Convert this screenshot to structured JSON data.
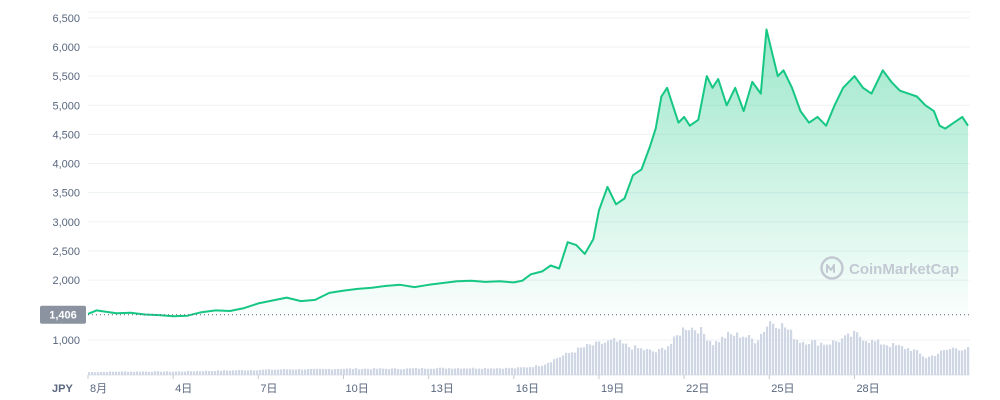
{
  "chart_data": {
    "type": "line",
    "currency": "JPY",
    "watermark": "CoinMarketCap",
    "ylim": [
      1350,
      6600
    ],
    "y_ticks": [
      {
        "value": 1000,
        "label": "1,000"
      },
      {
        "value": 2000,
        "label": "2,000"
      },
      {
        "value": 2500,
        "label": "2,500"
      },
      {
        "value": 3000,
        "label": "3,000"
      },
      {
        "value": 3500,
        "label": "3,500"
      },
      {
        "value": 4000,
        "label": "4,000"
      },
      {
        "value": 4500,
        "label": "4,500"
      },
      {
        "value": 5000,
        "label": "5,000"
      },
      {
        "value": 5500,
        "label": "5,500"
      },
      {
        "value": 6000,
        "label": "6,000"
      },
      {
        "value": 6500,
        "label": "6,500"
      }
    ],
    "reference_line": {
      "value": 1406,
      "label": "1,406"
    },
    "x_ticks": [
      {
        "day": 1,
        "label": "8月"
      },
      {
        "day": 4,
        "label": "4日"
      },
      {
        "day": 7,
        "label": "7日"
      },
      {
        "day": 10,
        "label": "10日"
      },
      {
        "day": 13,
        "label": "13日"
      },
      {
        "day": 16,
        "label": "16日"
      },
      {
        "day": 19,
        "label": "19日"
      },
      {
        "day": 22,
        "label": "22日"
      },
      {
        "day": 25,
        "label": "25日"
      },
      {
        "day": 28,
        "label": "28日"
      }
    ],
    "xlim": [
      1,
      32
    ],
    "price": {
      "x": [
        1,
        1.3,
        1.6,
        2,
        2.5,
        3,
        3.5,
        4,
        4.5,
        5,
        5.5,
        6,
        6.5,
        7,
        7.5,
        8,
        8.5,
        9,
        9.5,
        10,
        10.5,
        11,
        11.5,
        12,
        12.5,
        13,
        13.5,
        14,
        14.5,
        15,
        15.5,
        16,
        16.3,
        16.6,
        17,
        17.3,
        17.6,
        17.9,
        18.2,
        18.5,
        18.8,
        19,
        19.3,
        19.6,
        19.9,
        20.2,
        20.5,
        20.8,
        21,
        21.2,
        21.4,
        21.6,
        21.8,
        22,
        22.2,
        22.5,
        22.8,
        23,
        23.2,
        23.5,
        23.8,
        24.1,
        24.4,
        24.7,
        24.9,
        25.1,
        25.3,
        25.5,
        25.8,
        26.1,
        26.4,
        26.7,
        27,
        27.3,
        27.6,
        28,
        28.3,
        28.6,
        29,
        29.3,
        29.6,
        29.9,
        30.2,
        30.5,
        30.8,
        31,
        31.2,
        31.5,
        31.8,
        32
      ],
      "y": [
        1420,
        1480,
        1460,
        1430,
        1440,
        1410,
        1400,
        1380,
        1390,
        1450,
        1480,
        1470,
        1520,
        1600,
        1650,
        1700,
        1640,
        1660,
        1780,
        1820,
        1850,
        1870,
        1900,
        1920,
        1880,
        1920,
        1950,
        1980,
        1990,
        1970,
        1980,
        1960,
        1990,
        2100,
        2150,
        2250,
        2200,
        2650,
        2600,
        2450,
        2700,
        3200,
        3600,
        3300,
        3400,
        3800,
        3900,
        4300,
        4600,
        5150,
        5300,
        5000,
        4700,
        4800,
        4650,
        4750,
        5500,
        5300,
        5450,
        5000,
        5300,
        4900,
        5400,
        5200,
        6300,
        5900,
        5500,
        5600,
        5300,
        4900,
        4700,
        4800,
        4650,
        5000,
        5300,
        5500,
        5300,
        5200,
        5600,
        5400,
        5250,
        5200,
        5150,
        5000,
        4900,
        4650,
        4600,
        4700,
        4800,
        4650
      ]
    },
    "volume": {
      "x": [
        1,
        2,
        3,
        4,
        5,
        6,
        7,
        8,
        9,
        10,
        11,
        12,
        13,
        14,
        15,
        16,
        16.5,
        17,
        17.5,
        18,
        18.5,
        19,
        19.5,
        20,
        20.5,
        21,
        21.5,
        22,
        22.5,
        23,
        23.5,
        24,
        24.5,
        25,
        25.5,
        26,
        26.5,
        27,
        27.5,
        28,
        28.5,
        29,
        29.5,
        30,
        30.5,
        31,
        31.5,
        32
      ],
      "rel": [
        0.05,
        0.06,
        0.06,
        0.06,
        0.07,
        0.08,
        0.09,
        0.1,
        0.1,
        0.11,
        0.11,
        0.11,
        0.12,
        0.12,
        0.12,
        0.12,
        0.14,
        0.18,
        0.3,
        0.4,
        0.5,
        0.55,
        0.6,
        0.5,
        0.45,
        0.4,
        0.55,
        0.85,
        0.8,
        0.55,
        0.7,
        0.7,
        0.6,
        0.95,
        0.85,
        0.6,
        0.58,
        0.55,
        0.62,
        0.72,
        0.6,
        0.55,
        0.5,
        0.45,
        0.3,
        0.4,
        0.48,
        0.45
      ]
    }
  }
}
